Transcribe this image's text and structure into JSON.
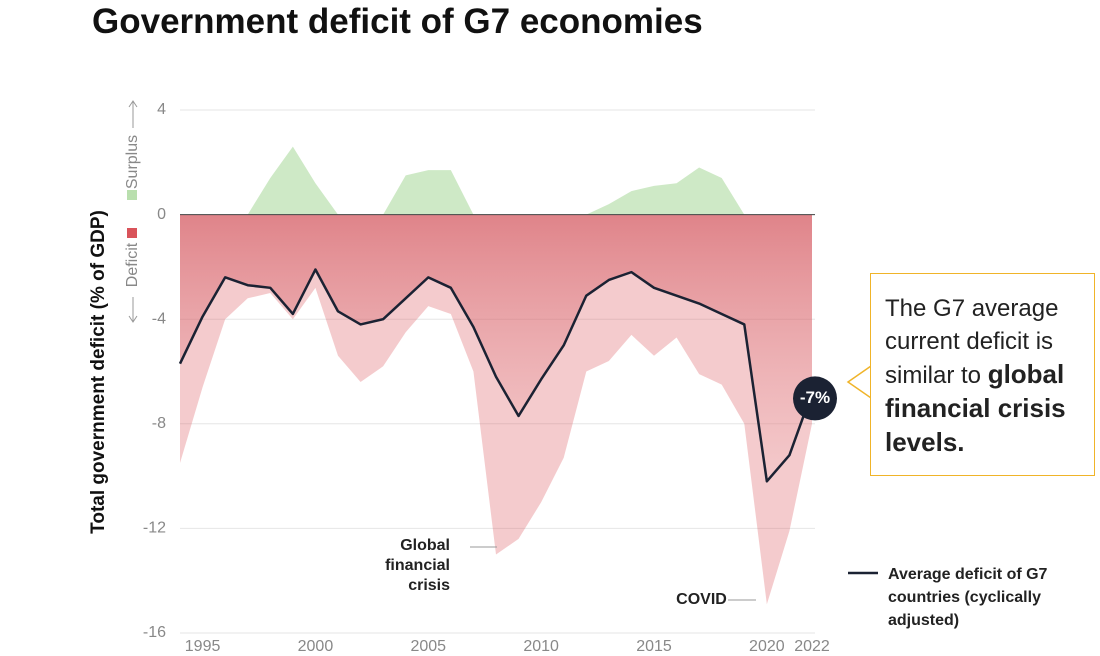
{
  "chart_data": {
    "type": "line",
    "title": "Government deficit of G7 economies",
    "y_label": "Total government deficit (% of GDP)",
    "surplus_label": "Surplus",
    "deficit_label": "Deficit",
    "x": [
      1994,
      1995,
      1996,
      1997,
      1998,
      1999,
      2000,
      2001,
      2002,
      2003,
      2004,
      2005,
      2006,
      2007,
      2008,
      2009,
      2010,
      2011,
      2012,
      2013,
      2014,
      2015,
      2016,
      2017,
      2018,
      2019,
      2020,
      2021,
      2022
    ],
    "series": [
      {
        "name": "Average deficit of G7 countries (cyclically adjusted)",
        "color": "#1b2233",
        "values": [
          -5.7,
          -3.9,
          -2.4,
          -2.7,
          -2.8,
          -3.8,
          -2.1,
          -3.7,
          -4.2,
          -4.0,
          -3.2,
          -2.4,
          -2.8,
          -4.3,
          -6.2,
          -7.7,
          -6.3,
          -5.0,
          -3.1,
          -2.5,
          -2.2,
          -2.8,
          -3.1,
          -3.4,
          -3.8,
          -4.2,
          -10.2,
          -9.2,
          -6.8
        ],
        "value_labels": [
          null,
          null,
          null,
          null,
          null,
          null,
          null,
          null,
          null,
          null,
          null,
          null,
          null,
          null,
          null,
          null,
          null,
          null,
          null,
          null,
          null,
          null,
          null,
          null,
          null,
          null,
          null,
          null,
          "-7%"
        ]
      }
    ],
    "band": {
      "high": [
        0,
        0,
        0,
        0,
        1.4,
        2.6,
        1.2,
        0,
        0,
        0,
        1.5,
        1.7,
        1.7,
        0,
        0,
        0,
        0,
        0,
        0,
        0.4,
        0.9,
        1.1,
        1.2,
        1.8,
        1.4,
        0,
        0,
        0,
        0
      ],
      "low": [
        -9.5,
        -6.6,
        -4.0,
        -3.2,
        -3.0,
        -4.0,
        -2.8,
        -5.4,
        -6.4,
        -5.8,
        -4.5,
        -3.5,
        -3.8,
        -6.0,
        -13.0,
        -12.4,
        -11.0,
        -9.3,
        -6.0,
        -5.6,
        -4.6,
        -5.4,
        -4.7,
        -6.1,
        -6.5,
        -8.0,
        -14.9,
        -12.1,
        -8.0
      ],
      "surplus_color": "#b9dfae",
      "deficit_color": "#d9535a"
    },
    "xlim": [
      1994,
      2022
    ],
    "xticks": [
      1995,
      2000,
      2005,
      2010,
      2015,
      2020,
      2022
    ],
    "ylim": [
      -16,
      4
    ],
    "yticks": [
      4,
      0,
      -4,
      -8,
      -12,
      -16
    ],
    "grid": true,
    "annotations": [
      {
        "text": "Global financial crisis",
        "x": 2008
      },
      {
        "text": "COVID",
        "x": 2020
      }
    ],
    "callout": {
      "text": "The G7 average current deficit is similar to",
      "emphasis": "global financial crisis levels."
    }
  }
}
